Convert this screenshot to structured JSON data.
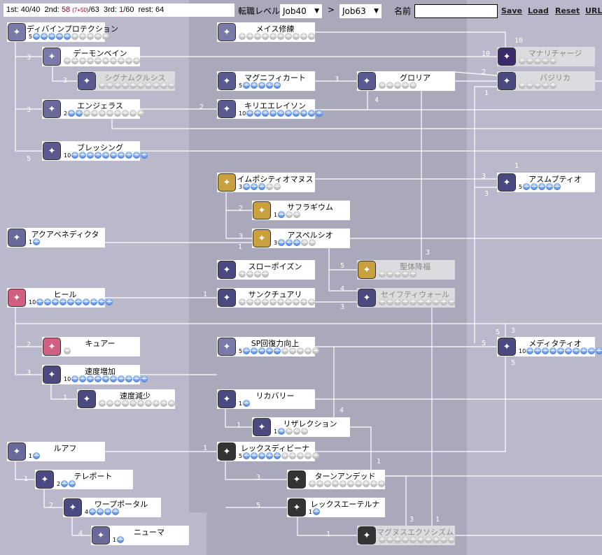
{
  "topbar": {
    "first": "1st: 40/40",
    "second_label": "2nd:",
    "second_value": "58",
    "second_detail": "(7+50)",
    "second_max": "/63",
    "third_label": "3rd:",
    "third_value": "1",
    "third_max": "/60",
    "rest": "rest: 64"
  },
  "controls": {
    "job_level_label": "転職レベル",
    "from_job": "Job40",
    "arrow": ">",
    "to_job": "Job63",
    "name_label": "名前",
    "name_value": "",
    "save": "Save",
    "load": "Load",
    "reset": "Reset",
    "url": "URL"
  },
  "colors": {
    "learned_orb": "#5a8ee0",
    "unlearned_orb": "#bdbdbd",
    "highlight_text": "#8a0030"
  },
  "skills": [
    {
      "id": "dp",
      "name": "ディバインプロテクション",
      "level": 5,
      "max": 10,
      "icon": "divine-protection-icon",
      "color": "#7a7aa8"
    },
    {
      "id": "db",
      "name": "デーモンベイン",
      "level": 0,
      "max": 10,
      "icon": "demon-bane-icon",
      "color": "#7a7aa8"
    },
    {
      "id": "sc",
      "name": "シグナムクルシス",
      "level": 0,
      "max": 10,
      "icon": "signum-crucis-icon",
      "color": "#5a5a90",
      "disabled": true
    },
    {
      "id": "an",
      "name": "エンジェラス",
      "level": 2,
      "max": 10,
      "icon": "angelus-icon",
      "color": "#6a6a9a"
    },
    {
      "id": "bl",
      "name": "ブレッシング",
      "level": 10,
      "max": 10,
      "icon": "blessing-icon",
      "color": "#5a5a90"
    },
    {
      "id": "aq",
      "name": "アクアベネディクタ",
      "level": 1,
      "max": 1,
      "icon": "aqua-benedicta-icon",
      "color": "#6a6a9a"
    },
    {
      "id": "he",
      "name": "ヒール",
      "level": 10,
      "max": 10,
      "icon": "heal-icon",
      "color": "#d06080"
    },
    {
      "id": "cu",
      "name": "キュアー",
      "level": 0,
      "max": 1,
      "icon": "cure-icon",
      "color": "#d06080"
    },
    {
      "id": "ia",
      "name": "速度増加",
      "level": 10,
      "max": 10,
      "icon": "increase-agi-icon",
      "color": "#4a4a80"
    },
    {
      "id": "da",
      "name": "速度減少",
      "level": 0,
      "max": 10,
      "icon": "decrease-agi-icon",
      "color": "#4a4a80"
    },
    {
      "id": "ru",
      "name": "ルアフ",
      "level": 1,
      "max": 1,
      "icon": "ruwach-icon",
      "color": "#6a6a9a"
    },
    {
      "id": "te",
      "name": "テレポート",
      "level": 2,
      "max": 2,
      "icon": "teleport-icon",
      "color": "#4a4a80"
    },
    {
      "id": "wp",
      "name": "ワープポータル",
      "level": 4,
      "max": 4,
      "icon": "warp-portal-icon",
      "color": "#4a4a80"
    },
    {
      "id": "pn",
      "name": "ニューマ",
      "level": 1,
      "max": 1,
      "icon": "pneuma-icon",
      "color": "#6a6a9a"
    },
    {
      "id": "mm",
      "name": "メイス修練",
      "level": 0,
      "max": 10,
      "icon": "mace-mastery-icon",
      "color": "#7a7aa8"
    },
    {
      "id": "mg",
      "name": "マグニフィカート",
      "level": 5,
      "max": 5,
      "icon": "magnificat-icon",
      "color": "#5a5a90"
    },
    {
      "id": "ky",
      "name": "キリエエレイソン",
      "level": 10,
      "max": 10,
      "icon": "kyrie-eleison-icon",
      "color": "#5a5a90"
    },
    {
      "id": "im",
      "name": "イムポシティオマヌス",
      "level": 3,
      "max": 5,
      "icon": "impositio-manus-icon",
      "color": "#c8a040"
    },
    {
      "id": "su",
      "name": "サフラギウム",
      "level": 1,
      "max": 3,
      "icon": "suffragium-icon",
      "color": "#c8a040"
    },
    {
      "id": "as",
      "name": "アスペルシオ",
      "level": 3,
      "max": 5,
      "icon": "aspersio-icon",
      "color": "#c8a040"
    },
    {
      "id": "sp",
      "name": "スローポイズン",
      "level": 0,
      "max": 4,
      "icon": "slow-poison-icon",
      "color": "#4a4a80"
    },
    {
      "id": "sa",
      "name": "サンクチュアリ",
      "level": 0,
      "max": 10,
      "icon": "sanctuary-icon",
      "color": "#4a4a80"
    },
    {
      "id": "sr",
      "name": "SP回復力向上",
      "level": 5,
      "max": 10,
      "icon": "sp-recovery-icon",
      "color": "#7a7aa8"
    },
    {
      "id": "rc",
      "name": "リカバリー",
      "level": 1,
      "max": 1,
      "icon": "recovery-icon",
      "color": "#4a4a80"
    },
    {
      "id": "rs",
      "name": "リザレクション",
      "level": 1,
      "max": 4,
      "icon": "resurrection-icon",
      "color": "#4a4a80"
    },
    {
      "id": "ld",
      "name": "レックスディビーナ",
      "level": 5,
      "max": 10,
      "icon": "lex-divina-icon",
      "color": "#333"
    },
    {
      "id": "tu",
      "name": "ターンアンデッド",
      "level": 0,
      "max": 10,
      "icon": "turn-undead-icon",
      "color": "#333"
    },
    {
      "id": "la",
      "name": "レックスエーテルナ",
      "level": 1,
      "max": 1,
      "icon": "lex-aeterna-icon",
      "color": "#333"
    },
    {
      "id": "gl",
      "name": "グロリア",
      "level": 0,
      "max": 5,
      "icon": "gloria-icon",
      "color": "#5a5a90"
    },
    {
      "id": "bs",
      "name": "聖体降福",
      "level": 0,
      "max": 5,
      "icon": "benedictio-icon",
      "color": "#c8a040",
      "disabled": true
    },
    {
      "id": "sw",
      "name": "セイフティウォール",
      "level": 0,
      "max": 10,
      "icon": "safety-wall-icon",
      "color": "#4a4a80",
      "disabled": true
    },
    {
      "id": "me",
      "name": "マグヌスエクソシズム",
      "level": 0,
      "max": 10,
      "icon": "magnus-exorcismus-icon",
      "color": "#333",
      "disabled": true
    },
    {
      "id": "mr",
      "name": "マナリチャージ",
      "level": 0,
      "max": 5,
      "icon": "mana-recharge-icon",
      "color": "#3a2a6a",
      "disabled": true
    },
    {
      "id": "ba",
      "name": "バジリカ",
      "level": 0,
      "max": 5,
      "icon": "basilica-icon",
      "color": "#4a4a80",
      "disabled": true
    },
    {
      "id": "at",
      "name": "アスムプティオ",
      "level": 5,
      "max": 5,
      "icon": "assumptio-icon",
      "color": "#4a4a80"
    },
    {
      "id": "md",
      "name": "メディタティオ",
      "level": 10,
      "max": 10,
      "icon": "meditatio-icon",
      "color": "#4a4a80"
    }
  ],
  "connectors": [
    "3",
    "3",
    "5",
    "3",
    "10",
    "10",
    "3",
    "4",
    "2",
    "1",
    "2",
    "1",
    "3",
    "3",
    "2",
    "3",
    "1",
    "5",
    "4",
    "3",
    "3",
    "1",
    "2",
    "3",
    "1",
    "3",
    "5",
    "5",
    "4",
    "1",
    "1",
    "1",
    "3",
    "5",
    "3",
    "1",
    "1",
    "1",
    "2",
    "4",
    "5"
  ]
}
